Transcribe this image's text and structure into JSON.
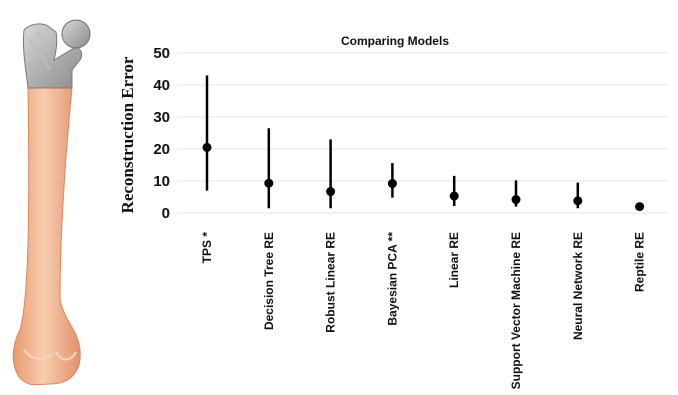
{
  "chart_data": {
    "type": "scatter",
    "title": "Comparing Models",
    "xlabel": "",
    "ylabel": "Reconstruction Error",
    "ylim": [
      0,
      50
    ],
    "yticks": [
      0,
      10,
      20,
      30,
      40,
      50
    ],
    "grid": true,
    "categories": [
      "TPS *",
      "Decision Tree RE",
      "Robust Linear RE",
      "Bayesian PCA **",
      "Linear RE",
      "Support Vector Machine RE",
      "Neural Network RE",
      "Reptile RE"
    ],
    "series": [
      {
        "values": [
          20.5,
          9.3,
          6.7,
          9.2,
          5.3,
          4.2,
          3.8,
          2.0
        ],
        "lower": [
          7.0,
          1.5,
          1.5,
          4.8,
          2.2,
          2.0,
          1.5,
          0.8
        ],
        "upper": [
          43.0,
          26.5,
          23.0,
          15.6,
          11.6,
          10.2,
          9.5,
          3.0
        ]
      }
    ],
    "colors": {
      "marker": "#000000",
      "bone_shaft": "#f1b48c",
      "bone_head": "#a8a8a8"
    }
  },
  "illustration": {
    "icon": "femur-bone-icon"
  }
}
